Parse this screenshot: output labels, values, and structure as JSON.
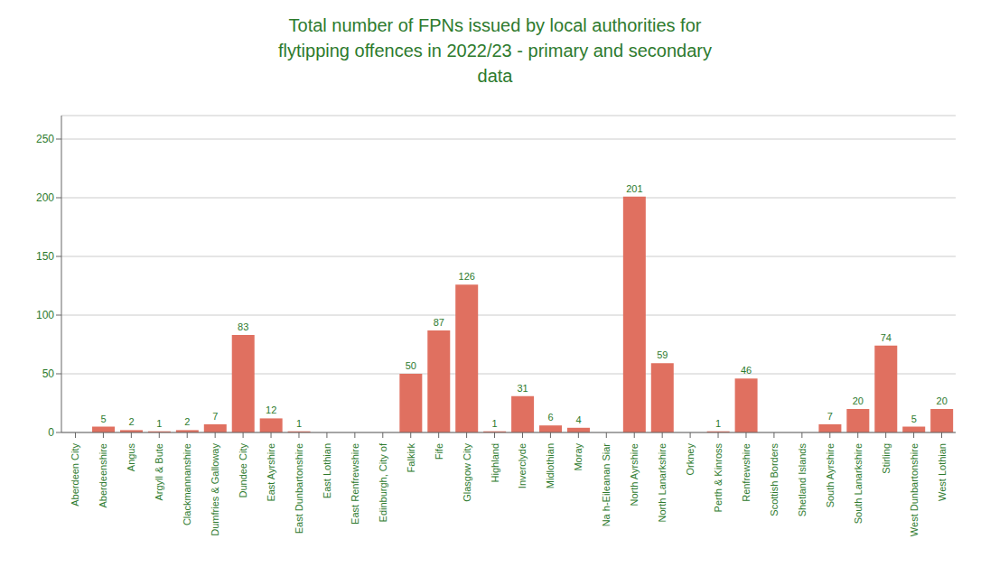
{
  "chart_data": {
    "type": "bar",
    "title": "Total number of FPNs issued by local authorities for\nflytipping offences in 2022/23 - primary and secondary\ndata",
    "categories": [
      "Aberdeen City",
      "Aberdeenshire",
      "Angus",
      "Argyll & Bute",
      "Clackmannanshire",
      "Dumfries & Galloway",
      "Dundee City",
      "East Ayrshire",
      "East Dunbartonshire",
      "East Lothian",
      "East Renfrewshire",
      "Edinburgh, City of",
      "Falkirk",
      "Fife",
      "Glasgow City",
      "Highland",
      "Inverclyde",
      "Midlothian",
      "Moray",
      "Na h-Eileanan Siar",
      "North Ayrshire",
      "North Lanarkshire",
      "Orkney",
      "Perth & Kinross",
      "Renfrewshire",
      "Scottish Borders",
      "Shetland Islands",
      "South Ayrshire",
      "South Lanarkshire",
      "Stirling",
      "West Dunbartonshire",
      "West Lothian"
    ],
    "values": [
      0,
      5,
      2,
      1,
      2,
      7,
      83,
      12,
      1,
      0,
      0,
      0,
      50,
      87,
      126,
      1,
      31,
      6,
      4,
      0,
      201,
      59,
      0,
      1,
      46,
      0,
      0,
      7,
      20,
      74,
      5,
      20
    ],
    "color": "#e07060",
    "ylim": [
      0,
      270
    ],
    "yticks": [
      0,
      50,
      100,
      150,
      200,
      250
    ],
    "grid": true,
    "data_labels": true
  }
}
